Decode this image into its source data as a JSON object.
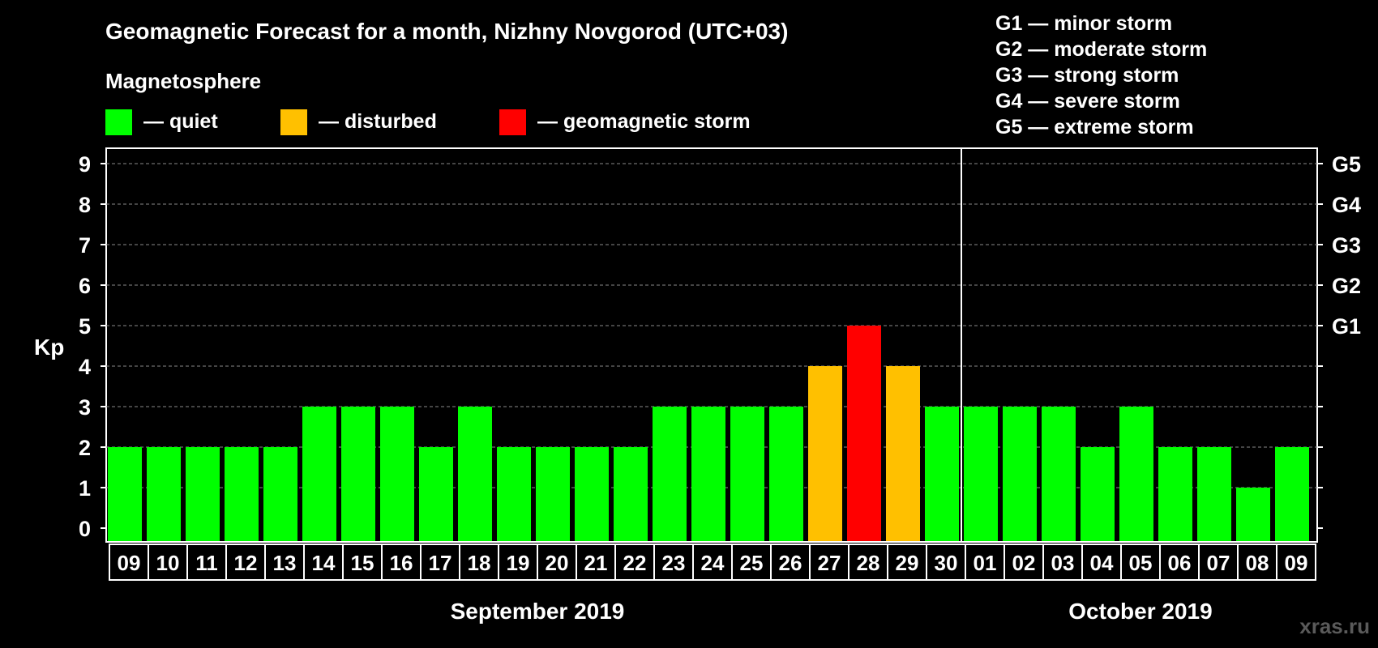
{
  "chart_data": {
    "type": "bar",
    "title": "Geomagnetic Forecast for a month, Nizhny Novgorod (UTC+03)",
    "ylabel": "Kp",
    "ylim": [
      0,
      9
    ],
    "yticks": [
      "0",
      "1",
      "2",
      "3",
      "4",
      "5",
      "6",
      "7",
      "8",
      "9"
    ],
    "g_ticks": [
      {
        "kp": 5,
        "label": "G1"
      },
      {
        "kp": 6,
        "label": "G2"
      },
      {
        "kp": 7,
        "label": "G3"
      },
      {
        "kp": 8,
        "label": "G4"
      },
      {
        "kp": 9,
        "label": "G5"
      }
    ],
    "categories": [
      "09",
      "10",
      "11",
      "12",
      "13",
      "14",
      "15",
      "16",
      "17",
      "18",
      "19",
      "20",
      "21",
      "22",
      "23",
      "24",
      "25",
      "26",
      "27",
      "28",
      "29",
      "30",
      "01",
      "02",
      "03",
      "04",
      "05",
      "06",
      "07",
      "08",
      "09"
    ],
    "values": [
      2,
      2,
      2,
      2,
      2,
      3,
      3,
      3,
      2,
      3,
      2,
      2,
      2,
      2,
      3,
      3,
      3,
      3,
      4,
      5,
      4,
      3,
      3,
      3,
      3,
      2,
      3,
      2,
      2,
      1,
      2
    ],
    "colors": {
      "quiet": "#00ff00",
      "disturbed": "#ffc000",
      "storm": "#ff0000",
      "grid": "#8a8a8a",
      "axis": "#ffffff",
      "watermark": "#5a5a5a"
    },
    "months": [
      {
        "label": "September 2019",
        "start_index": 0,
        "end_index": 21
      },
      {
        "label": "October 2019",
        "start_index": 22,
        "end_index": 30
      }
    ]
  },
  "legend": {
    "heading": "Magnetosphere",
    "items": [
      {
        "key": "quiet",
        "label": "— quiet"
      },
      {
        "key": "disturbed",
        "label": "— disturbed"
      },
      {
        "key": "storm",
        "label": "— geomagnetic storm"
      }
    ]
  },
  "g_legend": [
    "G1 — minor storm",
    "G2 — moderate storm",
    "G3 — strong storm",
    "G4 — severe storm",
    "G5 — extreme storm"
  ],
  "watermark": "xras.ru"
}
